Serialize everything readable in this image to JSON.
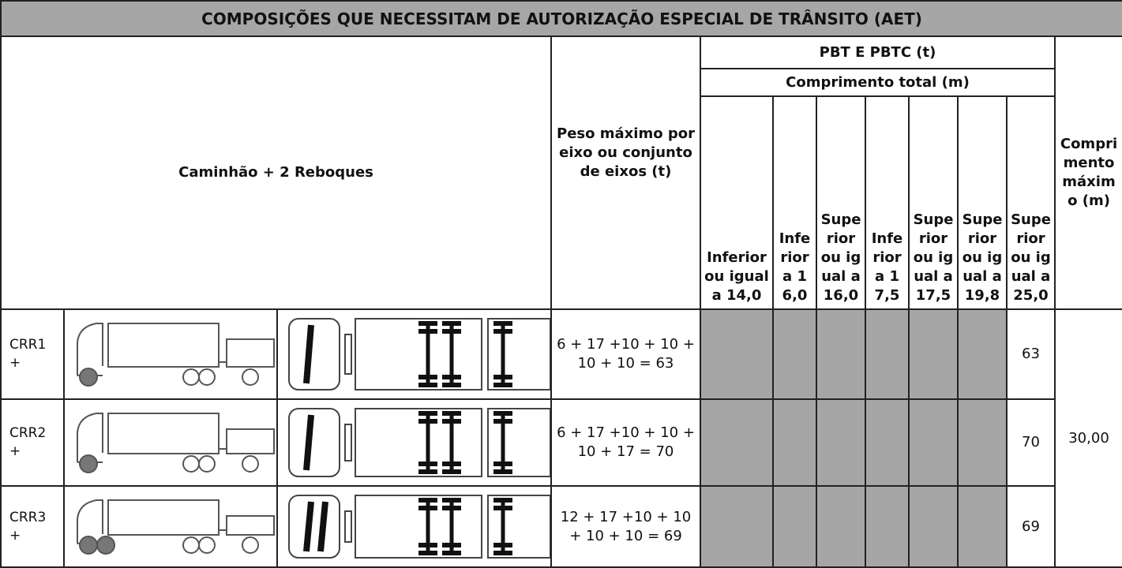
{
  "title": "COMPOSIÇÕES QUE NECESSITAM DE AUTORIZAÇÃO ESPECIAL DE TRÂNSITO (AET)",
  "header": {
    "vehicle": "Caminhão + 2 Reboques",
    "axle_weight": "Peso máximo por eixo ou conjunto de eixos (t)",
    "pbt": "PBT E PBTC (t)",
    "total_length": "Comprimento total (m)",
    "length_classes": [
      "Inferior ou igual a 14,0",
      "Inferior a 16,0",
      "Superior ou igual a 16,0",
      "Inferior a 17,5",
      "Superior ou igual a 17,5",
      "Superior ou igual a 19,8",
      "Superior ou igual a 25,0"
    ],
    "max_length": "Comprimento máximo (m)"
  },
  "rows": [
    {
      "code": "CRR1 +",
      "axle_weights": "6 + 17 +10 + 10 + 10 + 10 = 63",
      "pbt": 63
    },
    {
      "code": "CRR2 +",
      "axle_weights": "6 + 17 +10 + 10 + 10 + 17 = 70",
      "pbt": 70
    },
    {
      "code": "CRR3 +",
      "axle_weights": "12 + 17 +10 + 10 + 10 + 10 = 69",
      "pbt": 69
    }
  ],
  "max_length": "30,00"
}
